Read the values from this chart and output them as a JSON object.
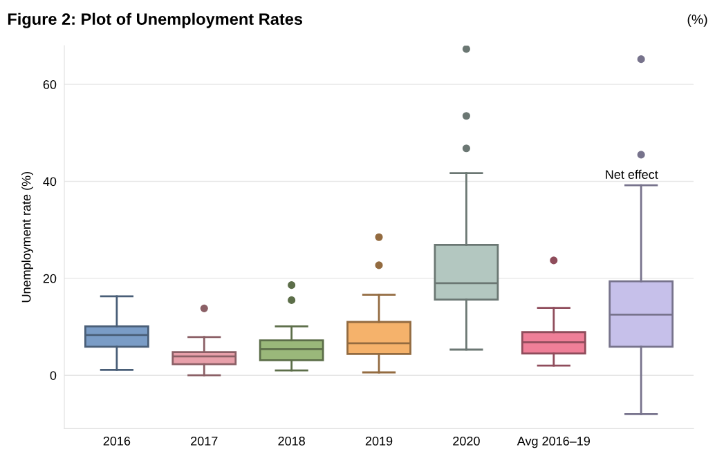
{
  "chart_data": {
    "type": "box",
    "title": "Figure 2: Plot of Unemployment Rates",
    "ylabel": "Unemployment rate (%)",
    "categories": [
      "2016",
      "2017",
      "2018",
      "2019",
      "2020",
      "Avg 2016–19",
      null
    ],
    "boxes": [
      {
        "low": 1.1,
        "q1": 5.9,
        "median": 8.3,
        "q3": 10.1,
        "high": 16.3
      },
      {
        "low": 0,
        "q1": 2.3,
        "median": 3.9,
        "q3": 4.8,
        "high": 7.9,
        "outliers": [
          13.8
        ]
      },
      {
        "low": 1.0,
        "q1": 3.1,
        "median": 5.4,
        "q3": 7.2,
        "high": 10.1,
        "outliers": [
          18.6,
          15.5
        ]
      },
      {
        "low": 0.6,
        "q1": 4.4,
        "median": 6.6,
        "q3": 11.0,
        "high": 16.6,
        "outliers": [
          28.5,
          22.7
        ]
      },
      {
        "low": 5.3,
        "q1": 15.6,
        "median": 19.0,
        "q3": 26.9,
        "high": 41.7,
        "outliers": [
          67.3,
          53.5,
          46.8
        ]
      },
      {
        "low": 2.0,
        "q1": 4.5,
        "median": 6.8,
        "q3": 8.9,
        "high": 13.9,
        "outliers": [
          23.7
        ]
      },
      {
        "low": -8.0,
        "q1": 5.9,
        "median": 12.5,
        "q3": 19.4,
        "high": 39.2,
        "outliers": [
          65.2,
          45.5
        ]
      }
    ],
    "colors": [
      "#7a9cc6",
      "#e8a0aa",
      "#9ab87a",
      "#f5b26b",
      "#b3c7c0",
      "#ef7f98",
      "#c6c0ea"
    ],
    "ylim": [
      -11,
      68
    ],
    "yticks": [
      0,
      20,
      40,
      60
    ],
    "grid": "y",
    "annotations": [
      "Net effect",
      "(%)"
    ]
  }
}
